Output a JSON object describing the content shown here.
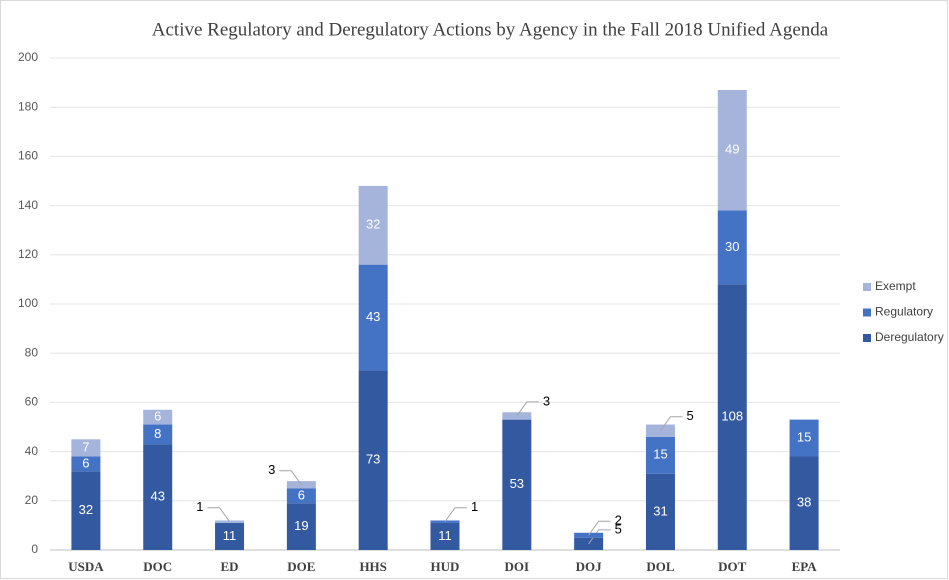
{
  "chart_data": {
    "type": "stacked-bar",
    "title": "Active Regulatory and Deregulatory Actions by Agency in the Fall 2018 Unified Agenda",
    "categories": [
      "USDA",
      "DOC",
      "ED",
      "DOE",
      "HHS",
      "HUD",
      "DOI",
      "DOJ",
      "DOL",
      "DOT",
      "EPA"
    ],
    "series": [
      {
        "name": "Deregulatory",
        "color": "#335aa1",
        "values": [
          32,
          43,
          11,
          19,
          73,
          11,
          53,
          5,
          31,
          108,
          38
        ]
      },
      {
        "name": "Regulatory",
        "color": "#4472c4",
        "values": [
          6,
          8,
          null,
          6,
          43,
          1,
          null,
          2,
          15,
          30,
          15
        ]
      },
      {
        "name": "Exempt",
        "color": "#a5b4da",
        "values": [
          7,
          6,
          1,
          3,
          32,
          null,
          3,
          null,
          5,
          49,
          null
        ]
      }
    ],
    "ylim": [
      0,
      200
    ],
    "yticks": [
      0,
      20,
      40,
      60,
      80,
      100,
      120,
      140,
      160,
      180,
      200
    ],
    "grid": true,
    "legend": "right"
  }
}
